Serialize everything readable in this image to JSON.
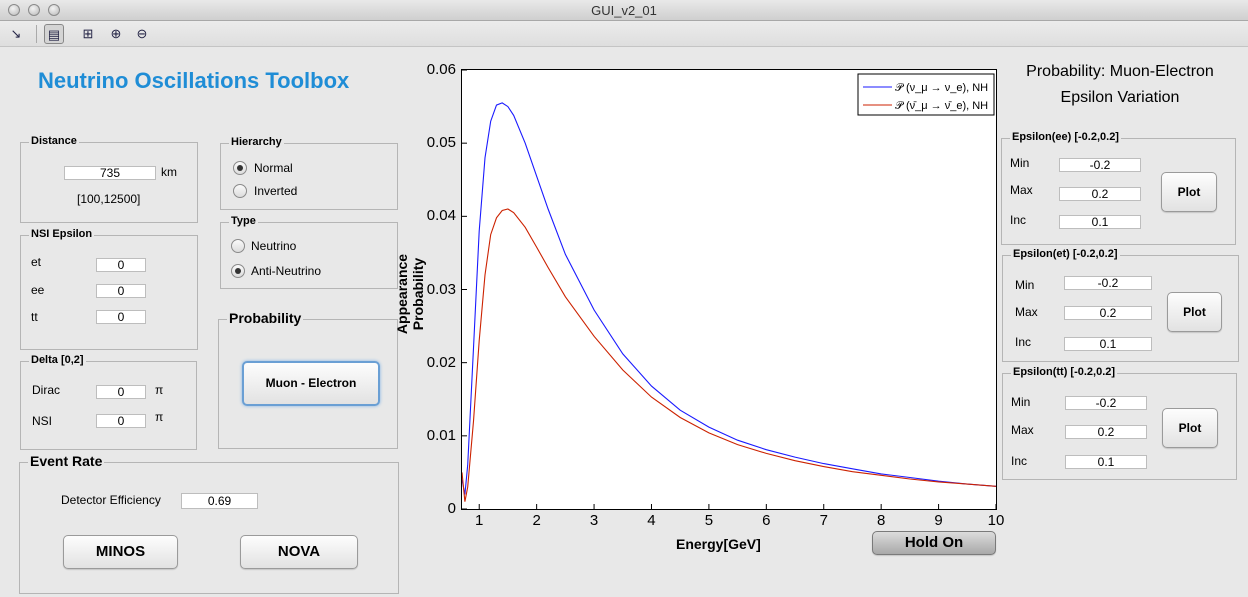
{
  "window": {
    "title": "GUI_v2_01"
  },
  "toolbar": {
    "icons": [
      "pointer-icon",
      "data-cursor-icon",
      "insert-colorbar-icon",
      "zoom-in-icon",
      "zoom-out-icon"
    ]
  },
  "app": {
    "title": "Neutrino Oscillations Toolbox"
  },
  "distance": {
    "title": "Distance",
    "value": "735",
    "unit": "km",
    "range": "[100,12500]"
  },
  "hierarchy": {
    "title": "Hierarchy",
    "normal": "Normal",
    "inverted": "Inverted",
    "selected": "Normal"
  },
  "type": {
    "title": "Type",
    "neutrino": "Neutrino",
    "anti": "Anti-Neutrino",
    "selected": "Anti-Neutrino"
  },
  "nsi": {
    "title": "NSI Epsilon",
    "et_label": "et",
    "et": "0",
    "ee_label": "ee",
    "ee": "0",
    "tt_label": "tt",
    "tt": "0"
  },
  "delta": {
    "title": "Delta [0,2]",
    "dirac_label": "Dirac",
    "dirac": "0",
    "nsi_label": "NSI",
    "nsi": "0",
    "pi": "π"
  },
  "probability": {
    "title": "Probability",
    "button": "Muon - Electron"
  },
  "event_rate": {
    "title": "Event Rate",
    "eff_label": "Detector Efficiency",
    "eff": "0.69",
    "minos": "MINOS",
    "nova": "NOVA"
  },
  "hold_button": "Hold On",
  "right": {
    "title1": "Probability: Muon-Electron",
    "title2": "Epsilon Variation",
    "ee": {
      "title": "Epsilon(ee) [-0.2,0.2]",
      "min": "-0.2",
      "max": "0.2",
      "inc": "0.1"
    },
    "et": {
      "title": "Epsilon(et) [-0.2,0.2]",
      "min": "-0.2",
      "max": "0.2",
      "inc": "0.1"
    },
    "tt": {
      "title": "Epsilon(tt) [-0.2,0.2]",
      "min": "-0.2",
      "max": "0.2",
      "inc": "0.1"
    },
    "min_label": "Min",
    "max_label": "Max",
    "inc_label": "Inc",
    "plot_label": "Plot"
  },
  "chart_data": {
    "type": "line",
    "xlabel": "Energy[GeV]",
    "ylabel": "Appearance Probability",
    "xlim": [
      0.7,
      10
    ],
    "ylim": [
      0,
      0.06
    ],
    "xticks": [
      "1",
      "2",
      "3",
      "4",
      "5",
      "6",
      "7",
      "8",
      "9",
      "10"
    ],
    "yticks": [
      "0",
      "0.01",
      "0.02",
      "0.03",
      "0.04",
      "0.05",
      "0.06"
    ],
    "legend_position": "top-right",
    "series": [
      {
        "name": "𝒫 (ν_μ → ν_e), NH",
        "color": "#1a1aff",
        "x": [
          0.7,
          0.75,
          0.8,
          0.9,
          1.0,
          1.1,
          1.2,
          1.3,
          1.4,
          1.5,
          1.6,
          1.8,
          2.0,
          2.2,
          2.5,
          3.0,
          3.5,
          4.0,
          4.5,
          5.0,
          5.5,
          6.0,
          6.5,
          7.0,
          7.5,
          8.0,
          8.5,
          9.0,
          9.5,
          10.0
        ],
        "y": [
          0.004,
          0.002,
          0.006,
          0.022,
          0.038,
          0.048,
          0.053,
          0.0552,
          0.0555,
          0.055,
          0.0538,
          0.05,
          0.0455,
          0.041,
          0.0348,
          0.0272,
          0.0212,
          0.0168,
          0.0135,
          0.0112,
          0.0094,
          0.0081,
          0.0071,
          0.0062,
          0.0055,
          0.0048,
          0.0043,
          0.0038,
          0.0034,
          0.0031
        ]
      },
      {
        "name": "𝒫 (ν̄_μ → ν̄_e), NH",
        "color": "#cc2200",
        "x": [
          0.7,
          0.75,
          0.8,
          0.9,
          1.0,
          1.1,
          1.2,
          1.3,
          1.4,
          1.5,
          1.6,
          1.8,
          2.0,
          2.2,
          2.5,
          3.0,
          3.5,
          4.0,
          4.5,
          5.0,
          5.5,
          6.0,
          6.5,
          7.0,
          7.5,
          8.0,
          8.5,
          9.0,
          9.5,
          10.0
        ],
        "y": [
          0.005,
          0.001,
          0.003,
          0.012,
          0.023,
          0.032,
          0.0375,
          0.0398,
          0.0408,
          0.041,
          0.0405,
          0.0385,
          0.0358,
          0.033,
          0.029,
          0.0236,
          0.019,
          0.0153,
          0.0125,
          0.0104,
          0.0088,
          0.0076,
          0.0066,
          0.0058,
          0.0051,
          0.0046,
          0.0041,
          0.0037,
          0.0034,
          0.0031
        ]
      }
    ]
  }
}
